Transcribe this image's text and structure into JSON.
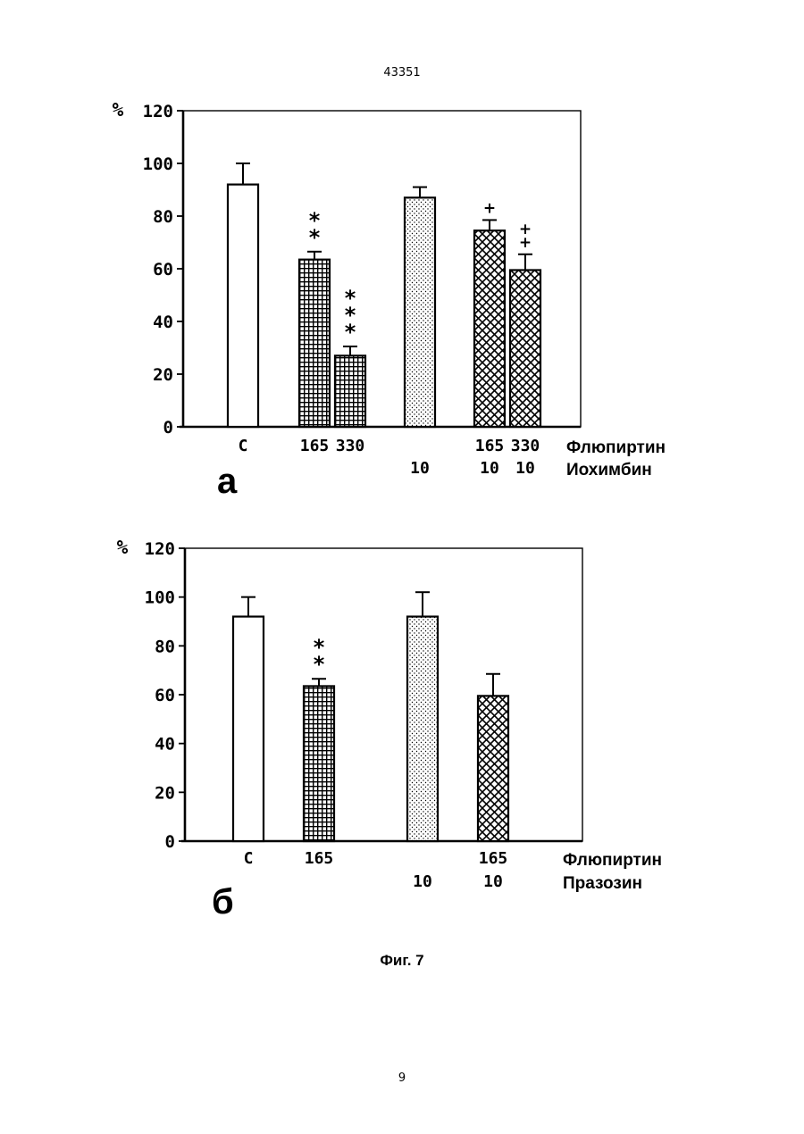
{
  "page": {
    "header_number": "43351",
    "footer_number": "9",
    "figure_caption": "Фиг. 7"
  },
  "chart_data": [
    {
      "type": "bar",
      "panel_label": "а",
      "ylabel": "%",
      "ylim": [
        0,
        120
      ],
      "yticks": [
        0,
        20,
        40,
        60,
        80,
        100,
        120
      ],
      "row_labels": [
        "Флюпиртин",
        "Иохимбин"
      ],
      "bars": [
        {
          "row1": "С",
          "row2": "",
          "value": 92,
          "error": 8,
          "pattern": "open",
          "marker": ""
        },
        {
          "row1": "165",
          "row2": "",
          "value": 63.5,
          "error": 3,
          "pattern": "grid",
          "marker": "**"
        },
        {
          "row1": "330",
          "row2": "",
          "value": 27,
          "error": 3.5,
          "pattern": "grid",
          "marker": "***"
        },
        {
          "row1": "",
          "row2": "10",
          "value": 87,
          "error": 4,
          "pattern": "dots",
          "marker": ""
        },
        {
          "row1": "165",
          "row2": "10",
          "value": 74.5,
          "error": 4,
          "pattern": "cross",
          "marker": "+"
        },
        {
          "row1": "330",
          "row2": "10",
          "value": 59.5,
          "error": 6,
          "pattern": "cross",
          "marker": "++"
        }
      ]
    },
    {
      "type": "bar",
      "panel_label": "б",
      "ylabel": "%",
      "ylim": [
        0,
        120
      ],
      "yticks": [
        0,
        20,
        40,
        60,
        80,
        100,
        120
      ],
      "row_labels": [
        "Флюпиртин",
        "Празозин"
      ],
      "bars": [
        {
          "row1": "С",
          "row2": "",
          "value": 92,
          "error": 8,
          "pattern": "open",
          "marker": ""
        },
        {
          "row1": "165",
          "row2": "",
          "value": 63.5,
          "error": 3,
          "pattern": "grid",
          "marker": "**"
        },
        {
          "row1": "",
          "row2": "10",
          "value": 92,
          "error": 10,
          "pattern": "dots",
          "marker": ""
        },
        {
          "row1": "165",
          "row2": "10",
          "value": 59.5,
          "error": 9,
          "pattern": "cross",
          "marker": ""
        }
      ]
    }
  ]
}
